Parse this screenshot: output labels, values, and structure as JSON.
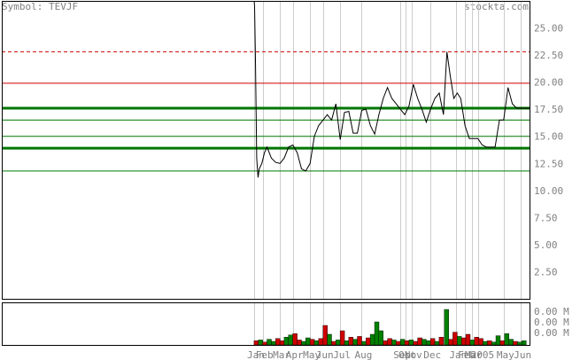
{
  "header": {
    "symbol_text": "Symbol: TEVJF",
    "brand": "stockta.com"
  },
  "chart_data": {
    "type": "line",
    "title": "Symbol: TEVJF",
    "price_axis": {
      "ylim": [
        0,
        27.5
      ],
      "ticks": [
        2.5,
        5.0,
        7.5,
        10.0,
        12.5,
        15.0,
        17.5,
        20.0,
        22.5,
        25.0
      ],
      "tick_labels": [
        "2.50",
        "5.00",
        "7.50",
        "10.00",
        "12.50",
        "15.00",
        "17.50",
        "20.00",
        "22.50",
        "25.00"
      ]
    },
    "volume_axis": {
      "tick_labels": [
        "0.00 M",
        "0.00 M",
        "0.00 M"
      ]
    },
    "x_axis": {
      "range": [
        0,
        32
      ],
      "month_labels": [
        {
          "label": "Jan",
          "x": 0.0
        },
        {
          "label": "Feb",
          "x": 1.0
        },
        {
          "label": "Mar",
          "x": 3.0
        },
        {
          "label": "Apr",
          "x": 4.5
        },
        {
          "label": "May",
          "x": 6.5
        },
        {
          "label": "Jun",
          "x": 8.0
        },
        {
          "label": "Jul",
          "x": 10.0
        },
        {
          "label": "Aug",
          "x": 12.5
        },
        {
          "label": "Sep",
          "x": 17.0
        },
        {
          "label": "Oct",
          "x": 17.6
        },
        {
          "label": "Nov",
          "x": 18.3
        },
        {
          "label": "Dec",
          "x": 20.5
        },
        {
          "label": "Jan",
          "x": 23.5
        },
        {
          "label": "Feb",
          "x": 24.5
        },
        {
          "label": "Mar",
          "x": 25.3
        },
        {
          "label": "2005",
          "x": 26.0
        },
        {
          "label": "May",
          "x": 29.0
        },
        {
          "label": "Jun",
          "x": 31.0
        }
      ]
    },
    "grid_lines_x": [
      0,
      1,
      3,
      4.5,
      6.5,
      8,
      10,
      12.5,
      17,
      17.6,
      18.3,
      20.5,
      23.5,
      24.5,
      25.3,
      26,
      29,
      31
    ],
    "reference_lines": [
      {
        "value": 22.8,
        "color": "#cc0000",
        "style": "dashed",
        "width": 1
      },
      {
        "value": 19.9,
        "color": "#cc0000",
        "style": "solid",
        "width": 1
      },
      {
        "value": 17.6,
        "color": "#007700",
        "style": "solid",
        "width": 3
      },
      {
        "value": 16.5,
        "color": "#007700",
        "style": "solid",
        "width": 1
      },
      {
        "value": 15.0,
        "color": "#007700",
        "style": "solid",
        "width": 1
      },
      {
        "value": 13.9,
        "color": "#007700",
        "style": "solid",
        "width": 3
      },
      {
        "value": 11.8,
        "color": "#007700",
        "style": "solid",
        "width": 1
      }
    ],
    "series": [
      {
        "name": "price",
        "color": "#000000",
        "points": [
          [
            0,
            28.0
          ],
          [
            0.05,
            27.0
          ],
          [
            0.15,
            22.0
          ],
          [
            0.3,
            13.0
          ],
          [
            0.45,
            11.2
          ],
          [
            0.6,
            12.0
          ],
          [
            0.9,
            12.5
          ],
          [
            1.2,
            13.5
          ],
          [
            1.5,
            14.0
          ],
          [
            2.0,
            13.0
          ],
          [
            2.5,
            12.6
          ],
          [
            3.0,
            12.5
          ],
          [
            3.5,
            13.0
          ],
          [
            4.0,
            14.0
          ],
          [
            4.5,
            14.2
          ],
          [
            5.0,
            13.5
          ],
          [
            5.5,
            12.0
          ],
          [
            6.0,
            11.8
          ],
          [
            6.5,
            12.5
          ],
          [
            7.0,
            15.0
          ],
          [
            7.5,
            16.0
          ],
          [
            8.0,
            16.5
          ],
          [
            8.5,
            17.0
          ],
          [
            9.0,
            16.5
          ],
          [
            9.5,
            18.0
          ],
          [
            10.0,
            14.7
          ],
          [
            10.5,
            17.2
          ],
          [
            11.0,
            17.3
          ],
          [
            11.5,
            15.3
          ],
          [
            12.0,
            15.3
          ],
          [
            12.5,
            17.4
          ],
          [
            13.0,
            17.5
          ],
          [
            13.5,
            16.0
          ],
          [
            14.0,
            15.2
          ],
          [
            14.5,
            17.0
          ],
          [
            15.0,
            18.5
          ],
          [
            15.5,
            19.5
          ],
          [
            16.0,
            18.5
          ],
          [
            16.5,
            18.0
          ],
          [
            17.0,
            17.5
          ],
          [
            17.5,
            17.0
          ],
          [
            18.0,
            17.8
          ],
          [
            18.5,
            19.8
          ],
          [
            19.0,
            18.5
          ],
          [
            19.5,
            17.5
          ],
          [
            20.0,
            16.3
          ],
          [
            20.5,
            17.5
          ],
          [
            21.0,
            18.5
          ],
          [
            21.5,
            19.0
          ],
          [
            22.0,
            17.0
          ],
          [
            22.4,
            22.8
          ],
          [
            22.8,
            20.5
          ],
          [
            23.2,
            18.5
          ],
          [
            23.6,
            19.0
          ],
          [
            24.0,
            18.5
          ],
          [
            24.5,
            16.0
          ],
          [
            25.0,
            14.8
          ],
          [
            25.5,
            14.8
          ],
          [
            26.0,
            14.8
          ],
          [
            26.5,
            14.2
          ],
          [
            27.0,
            14.0
          ],
          [
            27.5,
            14.0
          ],
          [
            28.0,
            14.0
          ],
          [
            28.5,
            16.5
          ],
          [
            29.0,
            16.5
          ],
          [
            29.5,
            19.5
          ],
          [
            30.0,
            18.0
          ],
          [
            30.5,
            17.6
          ],
          [
            32.0,
            17.6
          ]
        ]
      }
    ],
    "volume": {
      "up_color": "#008000",
      "down_color": "#cc0000",
      "bars": [
        {
          "x": 0.3,
          "v": 0.12,
          "dir": "down"
        },
        {
          "x": 0.8,
          "v": 0.14,
          "dir": "up"
        },
        {
          "x": 1.3,
          "v": 0.08,
          "dir": "down"
        },
        {
          "x": 1.8,
          "v": 0.16,
          "dir": "up"
        },
        {
          "x": 2.3,
          "v": 0.1,
          "dir": "up"
        },
        {
          "x": 2.8,
          "v": 0.18,
          "dir": "down"
        },
        {
          "x": 3.3,
          "v": 0.12,
          "dir": "down"
        },
        {
          "x": 3.8,
          "v": 0.22,
          "dir": "up"
        },
        {
          "x": 4.3,
          "v": 0.28,
          "dir": "up"
        },
        {
          "x": 4.8,
          "v": 0.32,
          "dir": "down"
        },
        {
          "x": 5.3,
          "v": 0.14,
          "dir": "down"
        },
        {
          "x": 5.8,
          "v": 0.1,
          "dir": "up"
        },
        {
          "x": 6.3,
          "v": 0.2,
          "dir": "up"
        },
        {
          "x": 6.8,
          "v": 0.16,
          "dir": "down"
        },
        {
          "x": 7.3,
          "v": 0.12,
          "dir": "up"
        },
        {
          "x": 7.8,
          "v": 0.18,
          "dir": "down"
        },
        {
          "x": 8.3,
          "v": 0.55,
          "dir": "down"
        },
        {
          "x": 8.8,
          "v": 0.3,
          "dir": "up"
        },
        {
          "x": 9.3,
          "v": 0.1,
          "dir": "down"
        },
        {
          "x": 9.8,
          "v": 0.14,
          "dir": "up"
        },
        {
          "x": 10.3,
          "v": 0.4,
          "dir": "down"
        },
        {
          "x": 10.8,
          "v": 0.12,
          "dir": "up"
        },
        {
          "x": 11.3,
          "v": 0.22,
          "dir": "down"
        },
        {
          "x": 11.8,
          "v": 0.16,
          "dir": "up"
        },
        {
          "x": 12.3,
          "v": 0.24,
          "dir": "down"
        },
        {
          "x": 12.8,
          "v": 0.1,
          "dir": "up"
        },
        {
          "x": 13.3,
          "v": 0.2,
          "dir": "down"
        },
        {
          "x": 13.8,
          "v": 0.3,
          "dir": "up"
        },
        {
          "x": 14.3,
          "v": 0.65,
          "dir": "up"
        },
        {
          "x": 14.8,
          "v": 0.4,
          "dir": "up"
        },
        {
          "x": 15.3,
          "v": 0.12,
          "dir": "down"
        },
        {
          "x": 15.8,
          "v": 0.18,
          "dir": "down"
        },
        {
          "x": 16.3,
          "v": 0.14,
          "dir": "up"
        },
        {
          "x": 16.8,
          "v": 0.1,
          "dir": "down"
        },
        {
          "x": 17.3,
          "v": 0.16,
          "dir": "up"
        },
        {
          "x": 17.8,
          "v": 0.12,
          "dir": "down"
        },
        {
          "x": 18.3,
          "v": 0.14,
          "dir": "up"
        },
        {
          "x": 18.8,
          "v": 0.1,
          "dir": "down"
        },
        {
          "x": 19.3,
          "v": 0.2,
          "dir": "down"
        },
        {
          "x": 19.8,
          "v": 0.16,
          "dir": "up"
        },
        {
          "x": 20.3,
          "v": 0.12,
          "dir": "up"
        },
        {
          "x": 20.8,
          "v": 0.18,
          "dir": "down"
        },
        {
          "x": 21.3,
          "v": 0.1,
          "dir": "up"
        },
        {
          "x": 21.8,
          "v": 0.22,
          "dir": "down"
        },
        {
          "x": 22.4,
          "v": 1.0,
          "dir": "up"
        },
        {
          "x": 22.9,
          "v": 0.16,
          "dir": "down"
        },
        {
          "x": 23.4,
          "v": 0.36,
          "dir": "down"
        },
        {
          "x": 23.9,
          "v": 0.24,
          "dir": "up"
        },
        {
          "x": 24.4,
          "v": 0.2,
          "dir": "down"
        },
        {
          "x": 24.9,
          "v": 0.3,
          "dir": "down"
        },
        {
          "x": 25.4,
          "v": 0.14,
          "dir": "up"
        },
        {
          "x": 25.9,
          "v": 0.22,
          "dir": "down"
        },
        {
          "x": 26.4,
          "v": 0.18,
          "dir": "down"
        },
        {
          "x": 26.9,
          "v": 0.1,
          "dir": "up"
        },
        {
          "x": 27.4,
          "v": 0.12,
          "dir": "down"
        },
        {
          "x": 27.9,
          "v": 0.08,
          "dir": "up"
        },
        {
          "x": 28.4,
          "v": 0.26,
          "dir": "up"
        },
        {
          "x": 28.9,
          "v": 0.12,
          "dir": "down"
        },
        {
          "x": 29.4,
          "v": 0.32,
          "dir": "up"
        },
        {
          "x": 29.9,
          "v": 0.16,
          "dir": "up"
        },
        {
          "x": 30.4,
          "v": 0.1,
          "dir": "down"
        },
        {
          "x": 30.9,
          "v": 0.08,
          "dir": "up"
        },
        {
          "x": 31.4,
          "v": 0.12,
          "dir": "up"
        }
      ]
    }
  }
}
